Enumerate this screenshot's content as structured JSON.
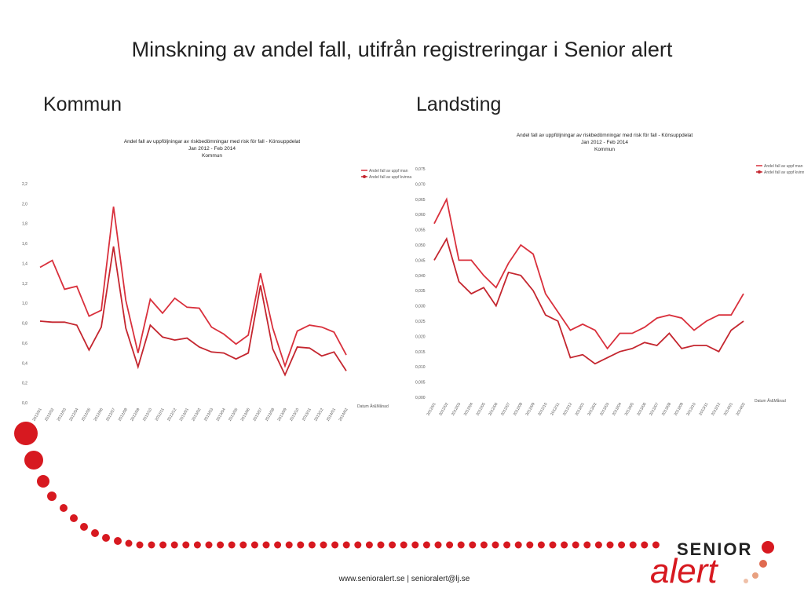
{
  "slide": {
    "title": "Minskning av andel fall, utifrån registreringar i Senior alert",
    "footer": "www.senioralert.se | senioralert@lj.se",
    "logo": {
      "top": "SENIOR",
      "bottom": "alert"
    }
  },
  "chart_data": [
    {
      "type": "line",
      "heading": "Kommun",
      "title": "Andel fall av uppföljningar av riskbedömningar med risk för fall - Könsuppdelat",
      "subtitle": [
        "Jan 2012 - Feb 2014",
        "Kommun"
      ],
      "x_label": "Datum År&Månad",
      "categories": [
        "2012/01",
        "2012/02",
        "2012/03",
        "2012/04",
        "2012/05",
        "2012/06",
        "2012/07",
        "2012/08",
        "2012/09",
        "2012/10",
        "2012/11",
        "2012/12",
        "2013/01",
        "2013/02",
        "2013/03",
        "2013/04",
        "2013/05",
        "2013/06",
        "2013/07",
        "2013/08",
        "2013/09",
        "2013/10",
        "2013/11",
        "2013/12",
        "2014/01",
        "2014/02"
      ],
      "series": [
        {
          "name": "Andel fall av uppf man",
          "color": "#d9303c",
          "values": [
            1.36,
            1.43,
            1.14,
            1.17,
            0.87,
            0.93,
            1.97,
            1.03,
            0.5,
            1.04,
            0.9,
            1.05,
            0.96,
            0.95,
            0.76,
            0.69,
            0.59,
            0.68,
            1.3,
            0.75,
            0.37,
            0.72,
            0.78,
            0.76,
            0.71,
            0.48
          ]
        },
        {
          "name": "Andel fall av uppf kvinna",
          "color": "#c4262f",
          "values": [
            0.82,
            0.81,
            0.81,
            0.78,
            0.53,
            0.76,
            1.57,
            0.75,
            0.36,
            0.78,
            0.66,
            0.63,
            0.65,
            0.56,
            0.51,
            0.5,
            0.44,
            0.5,
            1.18,
            0.54,
            0.28,
            0.56,
            0.55,
            0.47,
            0.51,
            0.32
          ]
        }
      ],
      "ylim": [
        0,
        2.2
      ],
      "yticks": [
        {
          "value": 0,
          "label": "0,0"
        },
        {
          "value": 0.2,
          "label": "0,2"
        },
        {
          "value": 0.4,
          "label": "0,4"
        },
        {
          "value": 0.6,
          "label": "0,6"
        },
        {
          "value": 0.8,
          "label": "0,8"
        },
        {
          "value": 1.0,
          "label": "1,0"
        },
        {
          "value": 1.2,
          "label": "1,2"
        },
        {
          "value": 1.4,
          "label": "1,4"
        },
        {
          "value": 1.6,
          "label": "1,6"
        },
        {
          "value": 1.8,
          "label": "1,8"
        },
        {
          "value": 2.0,
          "label": "2,0"
        },
        {
          "value": 2.2,
          "label": "2,2"
        }
      ],
      "legend": "top-right"
    },
    {
      "type": "line",
      "heading": "Landsting",
      "title": "Andel fall av uppföljningar av riskbedömningar med risk för fall - Könsuppdelat",
      "subtitle": [
        "Jan 2012 - Feb 2014",
        "Kommun"
      ],
      "x_label": "Datum År&Månad",
      "categories": [
        "2012/01",
        "2012/02",
        "2012/03",
        "2012/04",
        "2012/05",
        "2012/06",
        "2012/07",
        "2012/08",
        "2012/09",
        "2012/10",
        "2012/11",
        "2012/12",
        "2013/01",
        "2013/02",
        "2013/03",
        "2013/04",
        "2013/05",
        "2013/06",
        "2013/07",
        "2013/08",
        "2013/09",
        "2013/10",
        "2013/11",
        "2013/12",
        "2014/01",
        "2014/02"
      ],
      "series": [
        {
          "name": "Andel fall av uppf man",
          "color": "#d9303c",
          "values": [
            0.057,
            0.065,
            0.045,
            0.045,
            0.04,
            0.036,
            0.044,
            0.05,
            0.047,
            0.034,
            0.028,
            0.022,
            0.024,
            0.022,
            0.016,
            0.021,
            0.021,
            0.023,
            0.026,
            0.027,
            0.026,
            0.022,
            0.025,
            0.027,
            0.027,
            0.034
          ]
        },
        {
          "name": "Andel fall av uppf kvinna",
          "color": "#c4262f",
          "values": [
            0.045,
            0.052,
            0.038,
            0.034,
            0.036,
            0.03,
            0.041,
            0.04,
            0.035,
            0.027,
            0.025,
            0.013,
            0.014,
            0.011,
            0.013,
            0.015,
            0.016,
            0.018,
            0.017,
            0.021,
            0.016,
            0.017,
            0.017,
            0.015,
            0.022,
            0.025
          ]
        }
      ],
      "ylim": [
        0,
        0.075
      ],
      "yticks": [
        {
          "value": 0,
          "label": "0,000"
        },
        {
          "value": 0.005,
          "label": "0,005"
        },
        {
          "value": 0.01,
          "label": "0,010"
        },
        {
          "value": 0.015,
          "label": "0,015"
        },
        {
          "value": 0.02,
          "label": "0,020"
        },
        {
          "value": 0.025,
          "label": "0,025"
        },
        {
          "value": 0.03,
          "label": "0,030"
        },
        {
          "value": 0.035,
          "label": "0,035"
        },
        {
          "value": 0.04,
          "label": "0,040"
        },
        {
          "value": 0.045,
          "label": "0,045"
        },
        {
          "value": 0.05,
          "label": "0,050"
        },
        {
          "value": 0.055,
          "label": "0,055"
        },
        {
          "value": 0.06,
          "label": "0,060"
        },
        {
          "value": 0.065,
          "label": "0,065"
        },
        {
          "value": 0.07,
          "label": "0,070"
        },
        {
          "value": 0.075,
          "label": "0,075"
        }
      ],
      "legend": "top-right"
    }
  ]
}
